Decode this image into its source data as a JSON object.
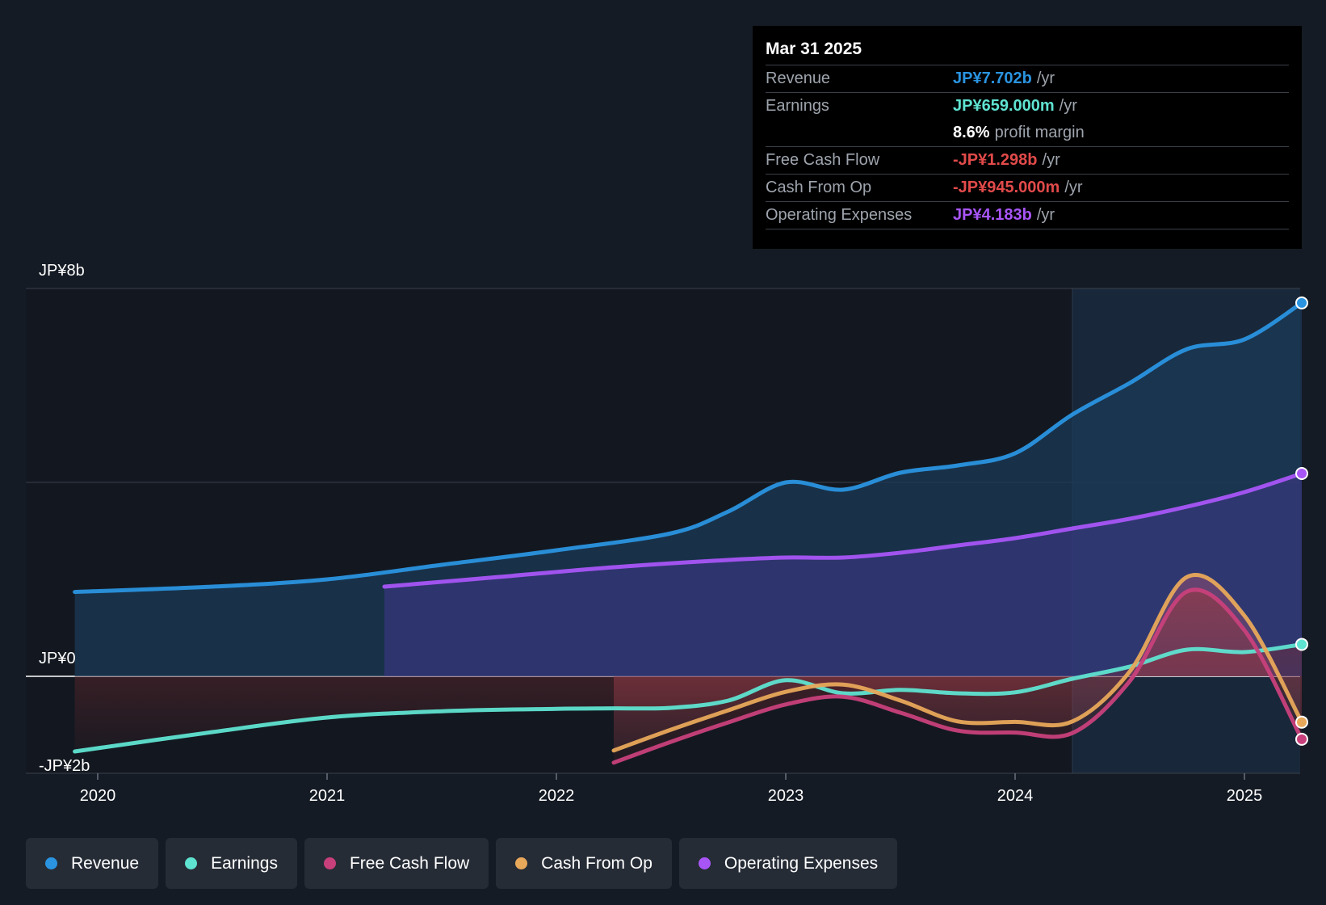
{
  "colors": {
    "revenue": "#2a94e0",
    "earnings": "#5fe3d1",
    "fcf": "#c8407b",
    "cfo": "#e8a85a",
    "opex": "#a855f7",
    "negative": "#e24a4a"
  },
  "tooltip": {
    "date": "Mar 31 2025",
    "rows": [
      {
        "label": "Revenue",
        "value": "JP¥7.702b",
        "unit": "/yr"
      },
      {
        "label": "Earnings",
        "value": "JP¥659.000m",
        "unit": "/yr"
      },
      {
        "label": "",
        "value": "8.6%",
        "unit": "profit margin"
      },
      {
        "label": "Free Cash Flow",
        "value": "-JP¥1.298b",
        "unit": "/yr"
      },
      {
        "label": "Cash From Op",
        "value": "-JP¥945.000m",
        "unit": "/yr"
      },
      {
        "label": "Operating Expenses",
        "value": "JP¥4.183b",
        "unit": "/yr"
      }
    ]
  },
  "legend": [
    "Revenue",
    "Earnings",
    "Free Cash Flow",
    "Cash From Op",
    "Operating Expenses"
  ],
  "chart_data": {
    "type": "area",
    "title": "",
    "y_axis_labels": [
      "JP¥8b",
      "JP¥0",
      "-JP¥2b"
    ],
    "x_tick_labels": [
      "2020",
      "2021",
      "2022",
      "2023",
      "2024",
      "2025"
    ],
    "ylim": [
      -2,
      8
    ],
    "xlim": [
      2019.7,
      2025.25
    ],
    "unit": "JP¥ billions",
    "highlight_start": 2024.25,
    "series": [
      {
        "name": "Revenue",
        "color_key": "revenue",
        "points": [
          [
            2019.9,
            1.74
          ],
          [
            2020.5,
            1.85
          ],
          [
            2021.0,
            2.0
          ],
          [
            2021.5,
            2.3
          ],
          [
            2022.0,
            2.6
          ],
          [
            2022.5,
            2.95
          ],
          [
            2022.75,
            3.4
          ],
          [
            2023.0,
            4.0
          ],
          [
            2023.25,
            3.85
          ],
          [
            2023.5,
            4.2
          ],
          [
            2023.75,
            4.35
          ],
          [
            2024.0,
            4.6
          ],
          [
            2024.25,
            5.4
          ],
          [
            2024.5,
            6.05
          ],
          [
            2024.75,
            6.75
          ],
          [
            2025.0,
            6.95
          ],
          [
            2025.25,
            7.702
          ]
        ]
      },
      {
        "name": "Operating Expenses",
        "color_key": "opex",
        "points": [
          [
            2021.25,
            1.85
          ],
          [
            2021.75,
            2.05
          ],
          [
            2022.25,
            2.25
          ],
          [
            2022.75,
            2.4
          ],
          [
            2023.0,
            2.45
          ],
          [
            2023.25,
            2.45
          ],
          [
            2023.5,
            2.55
          ],
          [
            2023.75,
            2.7
          ],
          [
            2024.0,
            2.85
          ],
          [
            2024.25,
            3.05
          ],
          [
            2024.5,
            3.25
          ],
          [
            2024.75,
            3.5
          ],
          [
            2025.0,
            3.8
          ],
          [
            2025.25,
            4.183
          ]
        ]
      },
      {
        "name": "Earnings",
        "color_key": "earnings",
        "points": [
          [
            2019.9,
            -1.55
          ],
          [
            2020.5,
            -1.15
          ],
          [
            2021.0,
            -0.85
          ],
          [
            2021.5,
            -0.72
          ],
          [
            2022.0,
            -0.67
          ],
          [
            2022.25,
            -0.66
          ],
          [
            2022.5,
            -0.65
          ],
          [
            2022.75,
            -0.5
          ],
          [
            2023.0,
            -0.08
          ],
          [
            2023.25,
            -0.35
          ],
          [
            2023.5,
            -0.28
          ],
          [
            2023.75,
            -0.35
          ],
          [
            2024.0,
            -0.33
          ],
          [
            2024.25,
            -0.05
          ],
          [
            2024.5,
            0.2
          ],
          [
            2024.75,
            0.55
          ],
          [
            2025.0,
            0.5
          ],
          [
            2025.25,
            0.659
          ]
        ]
      },
      {
        "name": "Free Cash Flow",
        "color_key": "fcf",
        "points": [
          [
            2022.25,
            -1.78
          ],
          [
            2022.5,
            -1.35
          ],
          [
            2022.75,
            -0.95
          ],
          [
            2023.0,
            -0.58
          ],
          [
            2023.25,
            -0.42
          ],
          [
            2023.5,
            -0.75
          ],
          [
            2023.75,
            -1.12
          ],
          [
            2024.0,
            -1.16
          ],
          [
            2024.25,
            -1.17
          ],
          [
            2024.5,
            -0.1
          ],
          [
            2024.75,
            1.75
          ],
          [
            2025.0,
            0.95
          ],
          [
            2025.25,
            -1.298
          ]
        ]
      },
      {
        "name": "Cash From Op",
        "color_key": "cfo",
        "points": [
          [
            2022.25,
            -1.53
          ],
          [
            2022.5,
            -1.1
          ],
          [
            2022.75,
            -0.7
          ],
          [
            2023.0,
            -0.32
          ],
          [
            2023.25,
            -0.17
          ],
          [
            2023.5,
            -0.5
          ],
          [
            2023.75,
            -0.93
          ],
          [
            2024.0,
            -0.94
          ],
          [
            2024.25,
            -0.93
          ],
          [
            2024.5,
            0.1
          ],
          [
            2024.75,
            2.05
          ],
          [
            2025.0,
            1.25
          ],
          [
            2025.25,
            -0.945
          ]
        ]
      }
    ]
  }
}
